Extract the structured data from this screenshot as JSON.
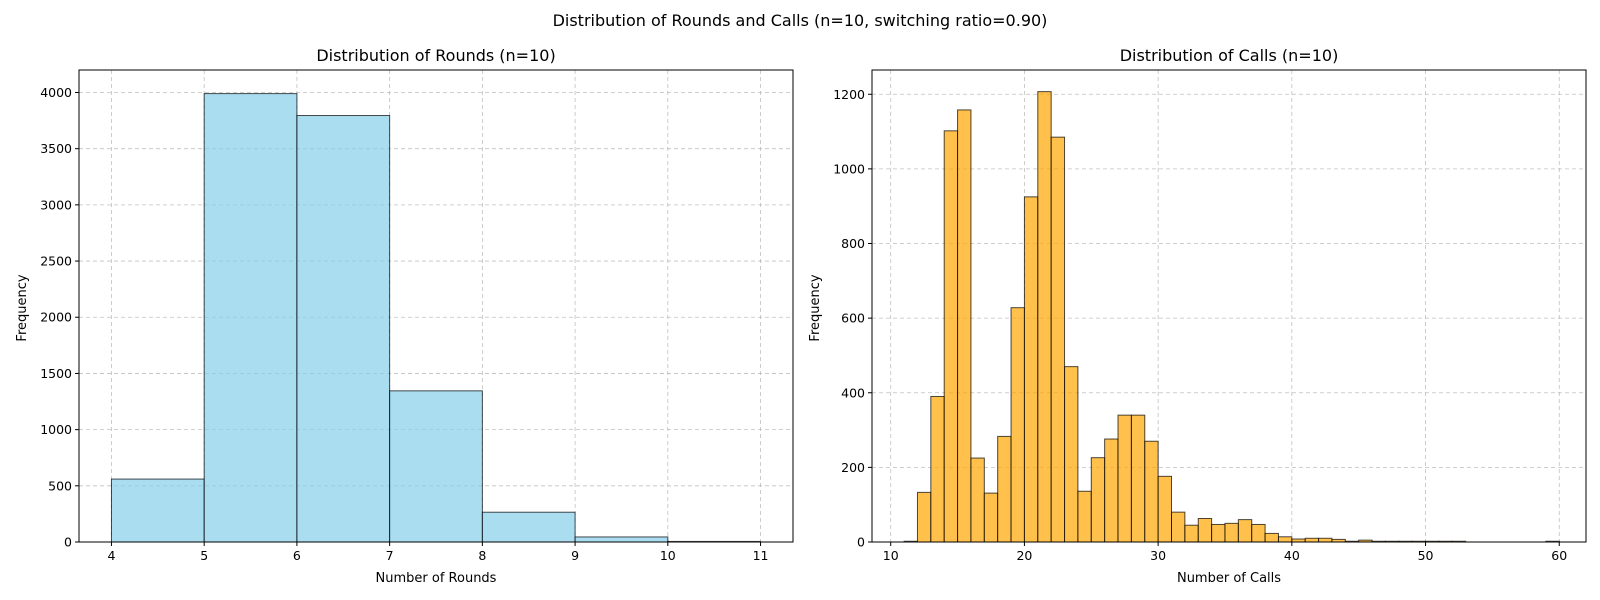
{
  "title": "Distribution of Rounds and Calls (n=10, switching ratio=0.90)",
  "colors": {
    "rounds_bar": "#87CEEB",
    "calls_bar": "#FFA500",
    "bar_edge": "#000000",
    "grid": "#b0b0b0"
  },
  "chart_data": [
    {
      "type": "bar",
      "title": "Distribution of Rounds (n=10)",
      "xlabel": "Number of Rounds",
      "ylabel": "Frequency",
      "color": "#87CEEB",
      "xlim": [
        3.65,
        11.35
      ],
      "ylim": [
        0,
        4200
      ],
      "xticks": [
        4,
        5,
        6,
        7,
        8,
        9,
        10,
        11
      ],
      "yticks": [
        0,
        500,
        1000,
        1500,
        2000,
        2500,
        3000,
        3500,
        4000
      ],
      "grid": true,
      "bins": [
        {
          "x0": 4,
          "x1": 5,
          "value": 560
        },
        {
          "x0": 5,
          "x1": 6,
          "value": 3990
        },
        {
          "x0": 6,
          "x1": 7,
          "value": 3795
        },
        {
          "x0": 7,
          "x1": 8,
          "value": 1345
        },
        {
          "x0": 8,
          "x1": 9,
          "value": 265
        },
        {
          "x0": 9,
          "x1": 10,
          "value": 45
        },
        {
          "x0": 10,
          "x1": 11,
          "value": 5
        }
      ]
    },
    {
      "type": "bar",
      "title": "Distribution of Calls (n=10)",
      "xlabel": "Number of Calls",
      "ylabel": "Frequency",
      "color": "#FFA500",
      "xlim": [
        8.6,
        62.0
      ],
      "ylim": [
        0,
        1265
      ],
      "xticks": [
        10,
        20,
        30,
        40,
        50,
        60
      ],
      "yticks": [
        0,
        200,
        400,
        600,
        800,
        1000,
        1200
      ],
      "grid": true,
      "bin_start": 11,
      "bin_width": 1,
      "values": [
        2,
        133,
        390,
        1102,
        1158,
        225,
        131,
        283,
        628,
        925,
        1207,
        1085,
        470,
        136,
        226,
        276,
        340,
        340,
        270,
        176,
        80,
        45,
        63,
        47,
        50,
        60,
        47,
        23,
        14,
        8,
        10,
        10,
        7,
        2,
        5,
        2,
        2,
        2,
        2,
        2,
        2,
        2,
        0,
        0,
        0,
        0,
        0,
        0,
        2
      ]
    }
  ]
}
